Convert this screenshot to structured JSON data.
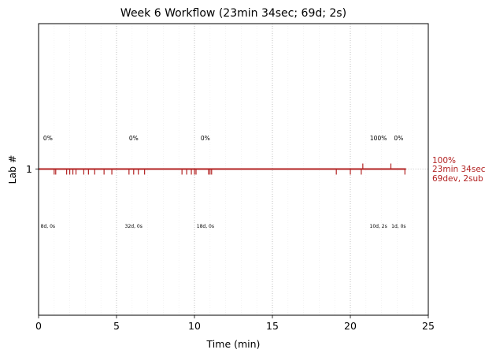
{
  "chart_data": {
    "type": "timeline",
    "title": "Week 6 Workflow (23min 34sec; 69d; 2s)",
    "xlabel": "Time (min)",
    "ylabel": "Lab #",
    "xlim": [
      0,
      25
    ],
    "x_ticks": [
      0,
      5,
      10,
      15,
      20,
      25
    ],
    "x_tick_labels": [
      "0",
      "5",
      "10",
      "15",
      "20",
      "25"
    ],
    "y_ticks": [
      1
    ],
    "y_tick_labels": [
      "1"
    ],
    "grid": "vertical, dotted",
    "color": "#b22222",
    "lab_line": {
      "lab": 1,
      "x_start": 0,
      "x_end": 23.57
    },
    "dev_events": [
      1.0,
      1.1,
      1.8,
      2.0,
      2.2,
      2.4,
      2.9,
      3.2,
      3.6,
      4.2,
      4.7,
      5.8,
      6.1,
      6.4,
      6.8,
      9.2,
      9.5,
      9.8,
      10.0,
      10.1,
      10.9,
      11.0,
      11.1,
      19.1,
      20.0,
      20.7,
      23.5
    ],
    "submit_events": [
      20.8,
      22.6
    ],
    "segment_labels": [
      {
        "x": 0.6,
        "progress": "0%",
        "counts": "8d, 0s"
      },
      {
        "x": 6.1,
        "progress": "0%",
        "counts": "32d, 0s"
      },
      {
        "x": 10.7,
        "progress": "0%",
        "counts": "18d, 0s"
      },
      {
        "x": 21.8,
        "progress": "100%",
        "counts": "10d, 2s"
      },
      {
        "x": 23.1,
        "progress": "0%",
        "counts": "1d, 0s"
      }
    ],
    "summary": {
      "progress": "100%",
      "duration": "23min 34sec",
      "counts": "69dev, 2sub"
    }
  }
}
